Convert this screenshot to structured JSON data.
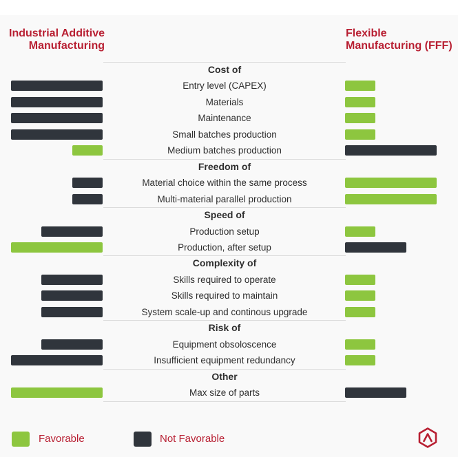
{
  "headers": {
    "left": "Industrial Additive\nManufacturing",
    "right": "Flexible\nManufacturing (FFF)"
  },
  "colors": {
    "favorable": "#8dc63f",
    "not_favorable": "#30353c",
    "accent": "#b81f32"
  },
  "legend": {
    "favorable": "Favorable",
    "not_favorable": "Not Favorable"
  },
  "chart_data": {
    "type": "bar",
    "title": "",
    "value_scale_note": "bar length on relative 0-3 scale",
    "sections": [
      {
        "heading": "Cost of",
        "rows": [
          {
            "label": "Entry level (CAPEX)",
            "iam": {
              "value": 3,
              "status": "not_favorable"
            },
            "fff": {
              "value": 1,
              "status": "favorable"
            }
          },
          {
            "label": "Materials",
            "iam": {
              "value": 3,
              "status": "not_favorable"
            },
            "fff": {
              "value": 1,
              "status": "favorable"
            }
          },
          {
            "label": "Maintenance",
            "iam": {
              "value": 3,
              "status": "not_favorable"
            },
            "fff": {
              "value": 1,
              "status": "favorable"
            }
          },
          {
            "label": "Small batches production",
            "iam": {
              "value": 3,
              "status": "not_favorable"
            },
            "fff": {
              "value": 1,
              "status": "favorable"
            }
          },
          {
            "label": "Medium batches production",
            "iam": {
              "value": 1,
              "status": "favorable"
            },
            "fff": {
              "value": 3,
              "status": "not_favorable"
            }
          }
        ]
      },
      {
        "heading": "Freedom of",
        "rows": [
          {
            "label": "Material choice within the same process",
            "iam": {
              "value": 1,
              "status": "not_favorable"
            },
            "fff": {
              "value": 3,
              "status": "favorable"
            }
          },
          {
            "label": "Multi-material parallel production",
            "iam": {
              "value": 1,
              "status": "not_favorable"
            },
            "fff": {
              "value": 3,
              "status": "favorable"
            }
          }
        ]
      },
      {
        "heading": "Speed of",
        "rows": [
          {
            "label": "Production setup",
            "iam": {
              "value": 2,
              "status": "not_favorable"
            },
            "fff": {
              "value": 1,
              "status": "favorable"
            }
          },
          {
            "label": "Production, after setup",
            "iam": {
              "value": 3,
              "status": "favorable"
            },
            "fff": {
              "value": 2,
              "status": "not_favorable"
            }
          }
        ]
      },
      {
        "heading": "Complexity of",
        "rows": [
          {
            "label": "Skills required to operate",
            "iam": {
              "value": 2,
              "status": "not_favorable"
            },
            "fff": {
              "value": 1,
              "status": "favorable"
            }
          },
          {
            "label": "Skills required to maintain",
            "iam": {
              "value": 2,
              "status": "not_favorable"
            },
            "fff": {
              "value": 1,
              "status": "favorable"
            }
          },
          {
            "label": "System scale-up and continous upgrade",
            "iam": {
              "value": 2,
              "status": "not_favorable"
            },
            "fff": {
              "value": 1,
              "status": "favorable"
            }
          }
        ]
      },
      {
        "heading": "Risk of",
        "rows": [
          {
            "label": "Equipment obsoloscence",
            "iam": {
              "value": 2,
              "status": "not_favorable"
            },
            "fff": {
              "value": 1,
              "status": "favorable"
            }
          },
          {
            "label": "Insufficient equipment redundancy",
            "iam": {
              "value": 3,
              "status": "not_favorable"
            },
            "fff": {
              "value": 1,
              "status": "favorable"
            }
          }
        ]
      },
      {
        "heading": "Other",
        "rows": [
          {
            "label": "Max size of parts",
            "iam": {
              "value": 3,
              "status": "favorable"
            },
            "fff": {
              "value": 2,
              "status": "not_favorable"
            }
          }
        ]
      }
    ]
  }
}
